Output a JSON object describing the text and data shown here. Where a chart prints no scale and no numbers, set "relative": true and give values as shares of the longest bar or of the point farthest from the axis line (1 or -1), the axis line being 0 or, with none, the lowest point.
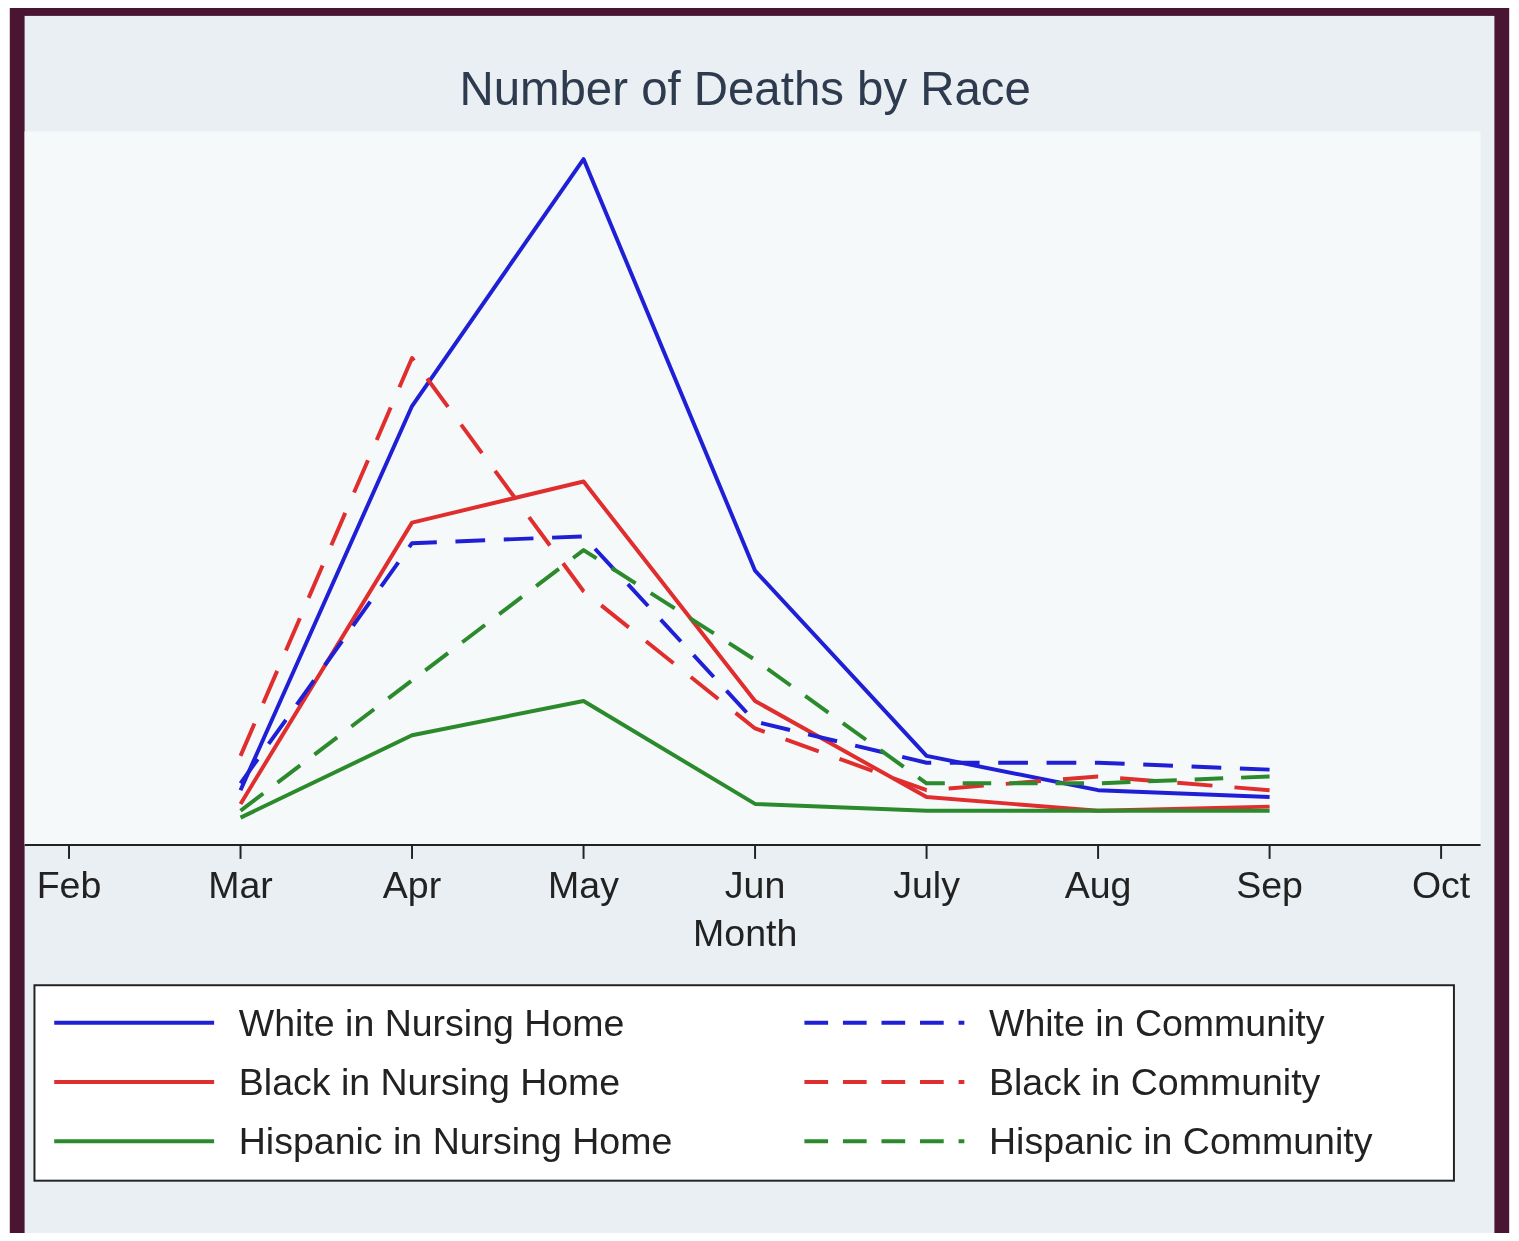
{
  "chart_data": {
    "type": "line",
    "title": "Number of Deaths by Race",
    "xlabel": "Month",
    "relative": true,
    "legend": "bottom",
    "categories": [
      "Feb",
      "Mar",
      "Apr",
      "May",
      "Jun",
      "July",
      "Aug",
      "Sep",
      "Oct"
    ],
    "series": [
      {
        "name": "White in Nursing Home",
        "color": "#1f1fd6",
        "line_style": "solid",
        "values": [
          null,
          0.08,
          0.64,
          1,
          0.4,
          0.13,
          0.08,
          0.07,
          null
        ]
      },
      {
        "name": "Black in Nursing Home",
        "color": "#e02d2d",
        "line_style": "solid",
        "values": [
          null,
          0.06,
          0.47,
          0.53,
          0.21,
          0.07,
          0.05,
          0.056,
          null
        ]
      },
      {
        "name": "Hispanic in Nursing Home",
        "color": "#2b8a2b",
        "line_style": "solid",
        "values": [
          null,
          0.04,
          0.16,
          0.21,
          0.06,
          0.05,
          0.05,
          0.05,
          null
        ]
      },
      {
        "name": "White in Community",
        "color": "#1f1fd6",
        "line_style": "dashed",
        "values": [
          null,
          0.09,
          0.44,
          0.45,
          0.18,
          0.12,
          0.12,
          0.11,
          null
        ]
      },
      {
        "name": "Black in Community",
        "color": "#e02d2d",
        "line_style": "dashed",
        "values": [
          null,
          0.13,
          0.71,
          0.37,
          0.17,
          0.08,
          0.1,
          0.08,
          null
        ]
      },
      {
        "name": "Hispanic in Community",
        "color": "#2b8a2b",
        "line_style": "dashed",
        "values": [
          null,
          0.05,
          0.24,
          0.43,
          0.27,
          0.09,
          0.09,
          0.1,
          null
        ]
      }
    ]
  }
}
